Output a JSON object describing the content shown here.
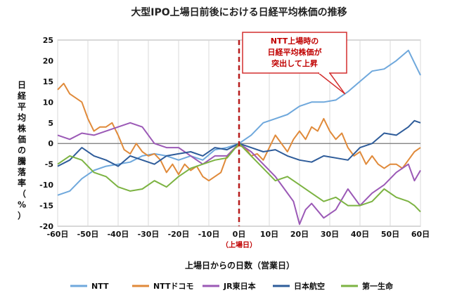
{
  "chart_data": {
    "type": "line",
    "title": "大型IPO上場日前後における日経平均株価の推移",
    "xlabel": "上場日からの日数（営業日）",
    "ylabel_chars": [
      "日",
      "経",
      "平",
      "均",
      "株",
      "価",
      "の",
      "騰",
      "落",
      "率",
      "（",
      "%",
      "）"
    ],
    "x_ticks": [
      -60,
      -50,
      -40,
      -30,
      -20,
      -10,
      0,
      10,
      20,
      30,
      40,
      50,
      60
    ],
    "x_tick_labels": [
      "-60日",
      "-50日",
      "-40日",
      "-30日",
      "-20日",
      "-10日",
      "0日",
      "10日",
      "20日",
      "30日",
      "40日",
      "50日",
      "60日"
    ],
    "x_zero_sublabel": "（上場日）",
    "ylim": [
      -20,
      25
    ],
    "y_ticks": [
      -20,
      -15,
      -10,
      -5,
      0,
      5,
      10,
      15,
      20,
      25
    ],
    "xlim": [
      -60,
      60
    ],
    "legend_position": "bottom",
    "callout": {
      "lines": [
        "NTT上場時の",
        "日経平均株価が",
        "突出して上昇"
      ],
      "arrow_to": [
        35,
        12
      ]
    },
    "series": [
      {
        "name": "NTT",
        "color": "#6fa8dc",
        "x": [
          -60,
          -56,
          -52,
          -48,
          -44,
          -40,
          -36,
          -32,
          -28,
          -24,
          -20,
          -16,
          -12,
          -8,
          -4,
          0,
          4,
          8,
          12,
          16,
          20,
          24,
          28,
          32,
          36,
          40,
          44,
          48,
          52,
          56,
          58,
          60
        ],
        "y": [
          -12.5,
          -11.5,
          -8.5,
          -6.5,
          -5.5,
          -5,
          -4.5,
          -3,
          -2.5,
          -3,
          -4,
          -3,
          -4,
          -1.5,
          -1,
          0,
          2,
          5,
          6,
          7,
          9,
          10,
          10,
          10.5,
          12.5,
          15,
          17.5,
          18,
          20,
          22.5,
          19.5,
          16.5
        ]
      },
      {
        "name": "NTTドコモ",
        "color": "#e08a3a",
        "x": [
          -60,
          -58,
          -56,
          -54,
          -52,
          -50,
          -48,
          -46,
          -44,
          -42,
          -40,
          -38,
          -36,
          -34,
          -32,
          -30,
          -28,
          -26,
          -24,
          -22,
          -20,
          -18,
          -16,
          -14,
          -12,
          -10,
          -8,
          -6,
          -4,
          -2,
          0,
          2,
          4,
          6,
          8,
          10,
          12,
          14,
          16,
          18,
          20,
          22,
          24,
          26,
          28,
          30,
          32,
          34,
          36,
          38,
          40,
          42,
          44,
          46,
          48,
          50,
          52,
          54,
          56,
          58,
          60
        ],
        "y": [
          13,
          14.5,
          12,
          11,
          10,
          6,
          3,
          4,
          4,
          5,
          2,
          -1.5,
          -2.5,
          0,
          -2,
          -3,
          -2.5,
          -4,
          -7,
          -5,
          -7.5,
          -5,
          -6.5,
          -5.5,
          -8,
          -9,
          -8,
          -7,
          -3,
          -1.5,
          -0.5,
          -1,
          -3,
          -2.5,
          -4,
          -1,
          2,
          0,
          -2,
          1,
          3,
          1,
          4,
          3,
          6,
          3,
          1,
          2.5,
          -1,
          -3,
          -2,
          -5,
          -3,
          -5,
          -6,
          -5,
          -5,
          -6,
          -4,
          -2,
          -1
        ]
      },
      {
        "name": "JR東日本",
        "color": "#9b59b6",
        "x": [
          -60,
          -56,
          -52,
          -48,
          -44,
          -40,
          -36,
          -32,
          -28,
          -24,
          -20,
          -16,
          -12,
          -8,
          -4,
          0,
          4,
          8,
          12,
          16,
          18,
          20,
          22,
          24,
          28,
          32,
          36,
          40,
          44,
          48,
          52,
          56,
          58,
          60
        ],
        "y": [
          2,
          1,
          2.5,
          2,
          3,
          4,
          5,
          4,
          0,
          -1,
          -1,
          -3,
          -5,
          -3,
          -3,
          0,
          -2,
          -5,
          -8,
          -12,
          -14,
          -19.5,
          -16,
          -14.5,
          -18,
          -16,
          -11,
          -15,
          -12,
          -10,
          -7,
          -5,
          -9,
          -6.5
        ]
      },
      {
        "name": "日本航空",
        "color": "#2e5c9a",
        "x": [
          -60,
          -56,
          -52,
          -48,
          -44,
          -40,
          -36,
          -32,
          -28,
          -24,
          -20,
          -16,
          -12,
          -8,
          -4,
          0,
          4,
          8,
          12,
          16,
          20,
          24,
          28,
          32,
          36,
          40,
          44,
          48,
          52,
          56,
          58,
          60
        ],
        "y": [
          -5.5,
          -4,
          -1,
          -3,
          -4,
          -5.5,
          -3,
          -4,
          -5,
          -3,
          -2.5,
          -2,
          -3,
          -1,
          -1.5,
          0,
          -1,
          -2,
          -1.5,
          -3,
          -4,
          -4.5,
          -3,
          -3.5,
          -4,
          -1,
          0,
          2.5,
          2,
          4,
          5.5,
          5
        ]
      },
      {
        "name": "第一生命",
        "color": "#7cb342",
        "x": [
          -60,
          -56,
          -52,
          -48,
          -44,
          -40,
          -36,
          -32,
          -28,
          -24,
          -20,
          -16,
          -12,
          -8,
          -4,
          0,
          4,
          8,
          12,
          16,
          20,
          24,
          28,
          32,
          36,
          40,
          44,
          48,
          52,
          56,
          58,
          60
        ],
        "y": [
          -5,
          -3,
          -4,
          -7,
          -8,
          -10.5,
          -11.5,
          -11,
          -9,
          -10.5,
          -8,
          -6,
          -5,
          -4,
          -3.5,
          0,
          -3,
          -6,
          -9,
          -8,
          -10,
          -12,
          -14,
          -13,
          -15,
          -15,
          -14,
          -11,
          -13,
          -14,
          -15,
          -16.5
        ]
      }
    ]
  }
}
